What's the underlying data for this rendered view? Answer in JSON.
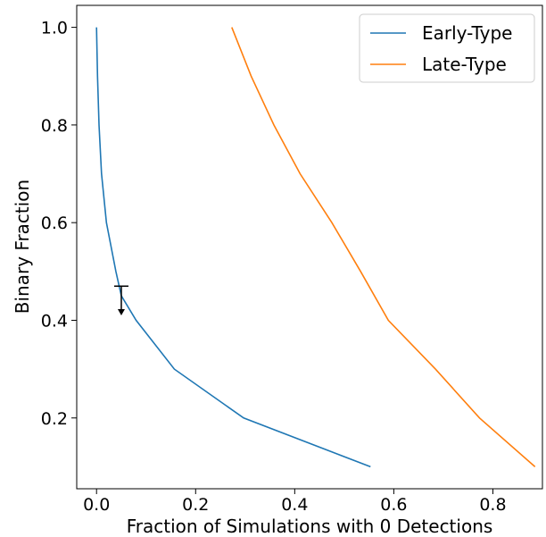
{
  "chart_data": {
    "type": "line",
    "xlabel": "Fraction of Simulations with 0 Detections",
    "ylabel": "Binary Fraction",
    "xlim": [
      -0.04,
      0.9
    ],
    "ylim": [
      0.055,
      1.045
    ],
    "xticks": [
      0.0,
      0.2,
      0.4,
      0.6,
      0.8
    ],
    "xtick_labels": [
      "0.0",
      "0.2",
      "0.4",
      "0.6",
      "0.8"
    ],
    "yticks": [
      0.2,
      0.4,
      0.6,
      0.8,
      1.0
    ],
    "ytick_labels": [
      "0.2",
      "0.4",
      "0.6",
      "0.8",
      "1.0"
    ],
    "grid": false,
    "legend_position": "top-right",
    "series": [
      {
        "name": "Early-Type",
        "color": "#1f77b4",
        "x": [
          0.553,
          0.297,
          0.157,
          0.08,
          0.05,
          0.039,
          0.02,
          0.01,
          0.005,
          0.002,
          0.0
        ],
        "y": [
          0.1,
          0.2,
          0.3,
          0.4,
          0.45,
          0.5,
          0.6,
          0.7,
          0.8,
          0.9,
          1.0
        ]
      },
      {
        "name": "Late-Type",
        "color": "#ff7f0e",
        "x": [
          0.885,
          0.773,
          0.684,
          0.589,
          0.533,
          0.475,
          0.411,
          0.358,
          0.312,
          0.273
        ],
        "y": [
          0.1,
          0.2,
          0.3,
          0.4,
          0.5,
          0.6,
          0.7,
          0.8,
          0.9,
          1.0
        ]
      }
    ],
    "annotations": [
      {
        "type": "upper-limit-arrow",
        "x": 0.05,
        "y_from": 0.47,
        "y_to": 0.41,
        "color": "#000000"
      }
    ]
  }
}
